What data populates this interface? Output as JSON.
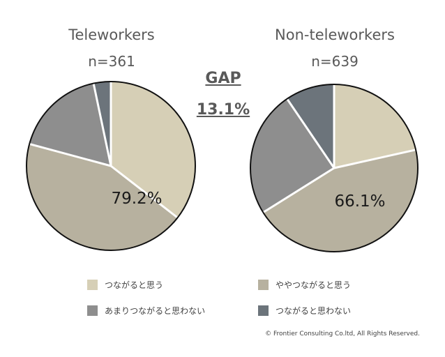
{
  "chart_data": [
    {
      "type": "pie",
      "title": "Teleworkers",
      "n_label": "n=361",
      "highlight_label": "79.2%",
      "slices": [
        {
          "label": "つながると思う",
          "value": 35.5,
          "color": "#d6cfb6"
        },
        {
          "label": "ややつながると思う",
          "value": 43.7,
          "color": "#b7b19f"
        },
        {
          "label": "あまりつながると思わない",
          "value": 17.5,
          "color": "#8e8e8e"
        },
        {
          "label": "つながると思わない",
          "value": 3.3,
          "color": "#6c747b"
        }
      ]
    },
    {
      "type": "pie",
      "title": "Non-teleworkers",
      "n_label": "n=639",
      "highlight_label": "66.1%",
      "slices": [
        {
          "label": "つながると思う",
          "value": 21.5,
          "color": "#d6cfb6"
        },
        {
          "label": "ややつながると思う",
          "value": 44.6,
          "color": "#b7b19f"
        },
        {
          "label": "あまりつながると思わない",
          "value": 24.4,
          "color": "#8e8e8e"
        },
        {
          "label": "つながると思わない",
          "value": 9.5,
          "color": "#6c747b"
        }
      ]
    }
  ],
  "gap": {
    "label": "GAP",
    "value": "13.1%"
  },
  "legend": [
    {
      "label": "つながると思う",
      "color": "#d6cfb6"
    },
    {
      "label": "ややつながると思う",
      "color": "#b7b19f"
    },
    {
      "label": "あまりつながると思わない",
      "color": "#8e8e8e"
    },
    {
      "label": "つながると思わない",
      "color": "#6c747b"
    }
  ],
  "copyright": "© Frontier Consulting Co.ltd, All Rights Reserved."
}
